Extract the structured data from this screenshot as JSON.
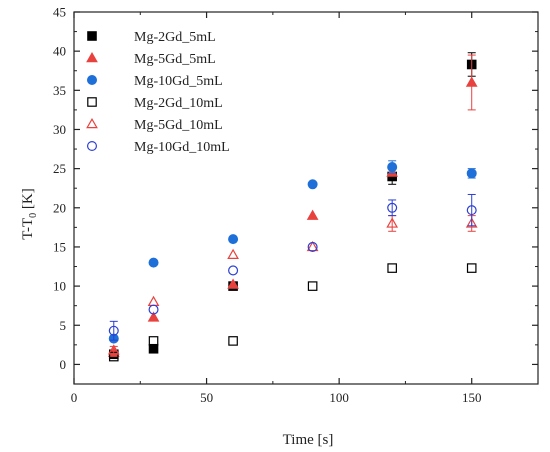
{
  "chart_data": {
    "type": "scatter",
    "xlabel": "Time [s]",
    "ylabel_main": "T-T",
    "ylabel_sub": "0",
    "ylabel_unit": " [K]",
    "xlim": [
      0,
      175
    ],
    "ylim": [
      -2.5,
      45
    ],
    "xticks": [
      0,
      50,
      100,
      150
    ],
    "xtick_labels": [
      "0",
      "50",
      "100",
      "150"
    ],
    "yticks": [
      0,
      5,
      10,
      15,
      20,
      25,
      30,
      35,
      40,
      45
    ],
    "ytick_labels": [
      "0",
      "5",
      "10",
      "15",
      "20",
      "25",
      "30",
      "35",
      "40",
      "45"
    ],
    "grid": false,
    "legend_position": "top-left",
    "series": [
      {
        "name": "Mg-2Gd_5mL",
        "marker": "square",
        "filled": true,
        "color": "#000000",
        "x": [
          15,
          30,
          60,
          120,
          150
        ],
        "y": [
          1.3,
          2.0,
          10.0,
          24.0,
          38.3
        ],
        "err": [
          0,
          0,
          0,
          1.0,
          1.5
        ]
      },
      {
        "name": "Mg-5Gd_5mL",
        "marker": "triangle",
        "filled": true,
        "color": "#e8423f",
        "x": [
          15,
          30,
          60,
          90,
          120,
          150
        ],
        "y": [
          1.5,
          6.0,
          10.2,
          19.0,
          24.5,
          36.0
        ],
        "err": [
          0,
          0,
          0,
          0,
          0,
          3.5
        ]
      },
      {
        "name": "Mg-10Gd_5mL",
        "marker": "circle",
        "filled": true,
        "color": "#1f6fd8",
        "x": [
          15,
          30,
          60,
          90,
          120,
          150
        ],
        "y": [
          3.3,
          13.0,
          16.0,
          23.0,
          25.2,
          24.4
        ],
        "err": [
          0,
          0,
          0,
          0,
          0.8,
          0.6
        ]
      },
      {
        "name": "Mg-2Gd_10mL",
        "marker": "square",
        "filled": false,
        "color": "#000000",
        "x": [
          15,
          30,
          60,
          90,
          120,
          150
        ],
        "y": [
          1.0,
          3.0,
          3.0,
          10.0,
          12.3,
          12.3
        ],
        "err": [
          0,
          0,
          0,
          0,
          0,
          0
        ]
      },
      {
        "name": "Mg-5Gd_10mL",
        "marker": "triangle",
        "filled": false,
        "color": "#e8423f",
        "x": [
          15,
          30,
          60,
          90,
          120,
          150
        ],
        "y": [
          1.8,
          8.0,
          14.0,
          15.0,
          18.0,
          18.0
        ],
        "err": [
          0.5,
          0,
          0,
          0,
          1.0,
          1.0
        ]
      },
      {
        "name": "Mg-10Gd_10mL",
        "marker": "circle",
        "filled": false,
        "color": "#2b3fd6",
        "x": [
          15,
          30,
          60,
          90,
          120,
          150
        ],
        "y": [
          4.3,
          7.0,
          12.0,
          15.0,
          20.0,
          19.7
        ],
        "err": [
          1.2,
          0,
          0,
          0,
          1.0,
          2.0
        ]
      }
    ]
  }
}
